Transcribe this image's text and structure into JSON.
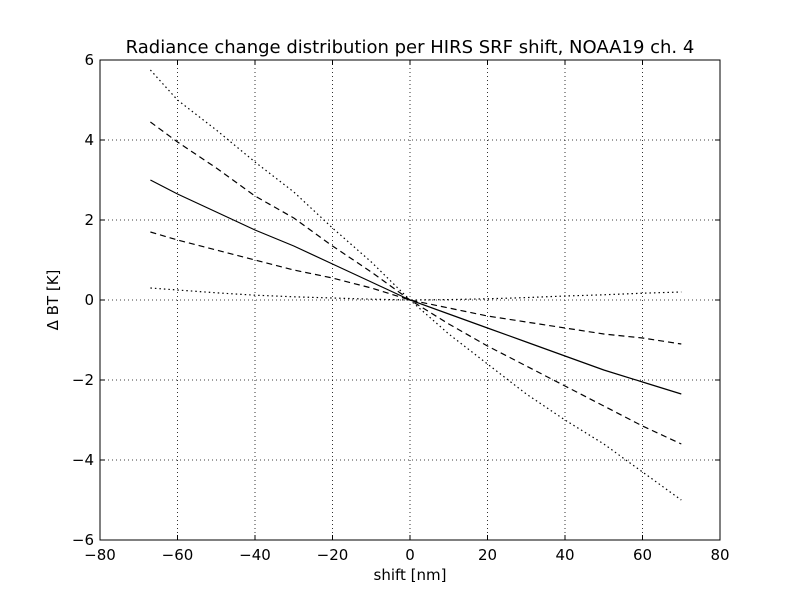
{
  "chart_data": {
    "type": "line",
    "title": "Radiance change distribution per HIRS SRF shift, NOAA19 ch.  4",
    "xlabel": "shift [nm]",
    "ylabel": "Δ BT [K]",
    "xlim": [
      -80,
      80
    ],
    "ylim": [
      -6,
      6
    ],
    "xticks": [
      -80,
      -60,
      -40,
      -20,
      0,
      20,
      40,
      60,
      80
    ],
    "yticks": [
      -6,
      -4,
      -2,
      0,
      2,
      4,
      6
    ],
    "xtick_labels": [
      "−80",
      "−60",
      "−40",
      "−20",
      "0",
      "20",
      "40",
      "60",
      "80"
    ],
    "ytick_labels": [
      "−6",
      "−4",
      "−2",
      "0",
      "2",
      "4",
      "6"
    ],
    "grid": true,
    "legend": "none",
    "series": [
      {
        "style": "dotted",
        "x": [
          -67,
          -60,
          -50,
          -40,
          -30,
          -20,
          -10,
          0,
          10,
          20,
          30,
          40,
          50,
          60,
          70
        ],
        "y": [
          5.75,
          5.0,
          4.25,
          3.45,
          2.7,
          1.8,
          0.95,
          0.0,
          -0.85,
          -1.6,
          -2.35,
          -3.0,
          -3.6,
          -4.3,
          -5.0
        ]
      },
      {
        "style": "dashed",
        "x": [
          -67,
          -60,
          -50,
          -40,
          -30,
          -20,
          -10,
          0,
          10,
          20,
          30,
          40,
          50,
          60,
          70
        ],
        "y": [
          4.45,
          3.95,
          3.3,
          2.6,
          2.05,
          1.35,
          0.7,
          0.0,
          -0.6,
          -1.15,
          -1.65,
          -2.15,
          -2.65,
          -3.15,
          -3.6
        ]
      },
      {
        "style": "solid",
        "x": [
          -67,
          -60,
          -50,
          -40,
          -30,
          -20,
          -10,
          0,
          10,
          20,
          30,
          40,
          50,
          60,
          70
        ],
        "y": [
          3.0,
          2.65,
          2.2,
          1.75,
          1.35,
          0.9,
          0.45,
          0.0,
          -0.35,
          -0.7,
          -1.05,
          -1.4,
          -1.75,
          -2.05,
          -2.35
        ]
      },
      {
        "style": "dashed",
        "x": [
          -67,
          -60,
          -50,
          -40,
          -30,
          -20,
          -10,
          0,
          10,
          20,
          30,
          40,
          50,
          60,
          70
        ],
        "y": [
          1.7,
          1.5,
          1.25,
          1.0,
          0.75,
          0.55,
          0.3,
          0.0,
          -0.2,
          -0.4,
          -0.55,
          -0.7,
          -0.85,
          -0.95,
          -1.1
        ]
      },
      {
        "style": "dotted",
        "x": [
          -67,
          -60,
          -50,
          -40,
          -30,
          -20,
          -10,
          0,
          10,
          20,
          30,
          40,
          50,
          60,
          70
        ],
        "y": [
          0.3,
          0.25,
          0.18,
          0.12,
          0.08,
          0.05,
          0.02,
          0.0,
          0.01,
          0.03,
          0.06,
          0.1,
          0.13,
          0.17,
          0.2
        ]
      }
    ]
  }
}
